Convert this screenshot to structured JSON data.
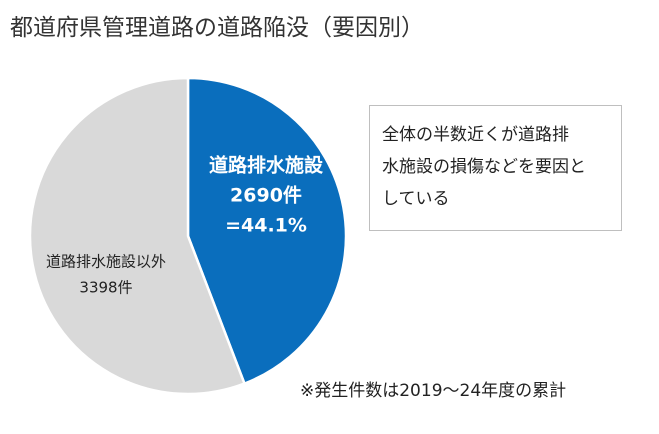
{
  "title": "都道府県管理道路の道路陥没（要因別）",
  "chart_data": {
    "type": "pie",
    "slices": [
      {
        "label": "道路排水施設",
        "value": 2690,
        "value_text": "2690件",
        "percent_text": "=44.1%",
        "color": "#0a6ebd",
        "text_color": "#ffffff"
      },
      {
        "label": "道路排水施設以外",
        "value": 3398,
        "value_text": "3398件",
        "color": "#d9d9d9",
        "text_color": "#222222"
      }
    ],
    "start_angle_deg": 0,
    "direction": "clockwise"
  },
  "note": {
    "lines": [
      "全体の半数近くが道路排",
      "水施設の損傷などを要因と",
      "している"
    ]
  },
  "footnote": "※発生件数は2019～24年度の累計"
}
